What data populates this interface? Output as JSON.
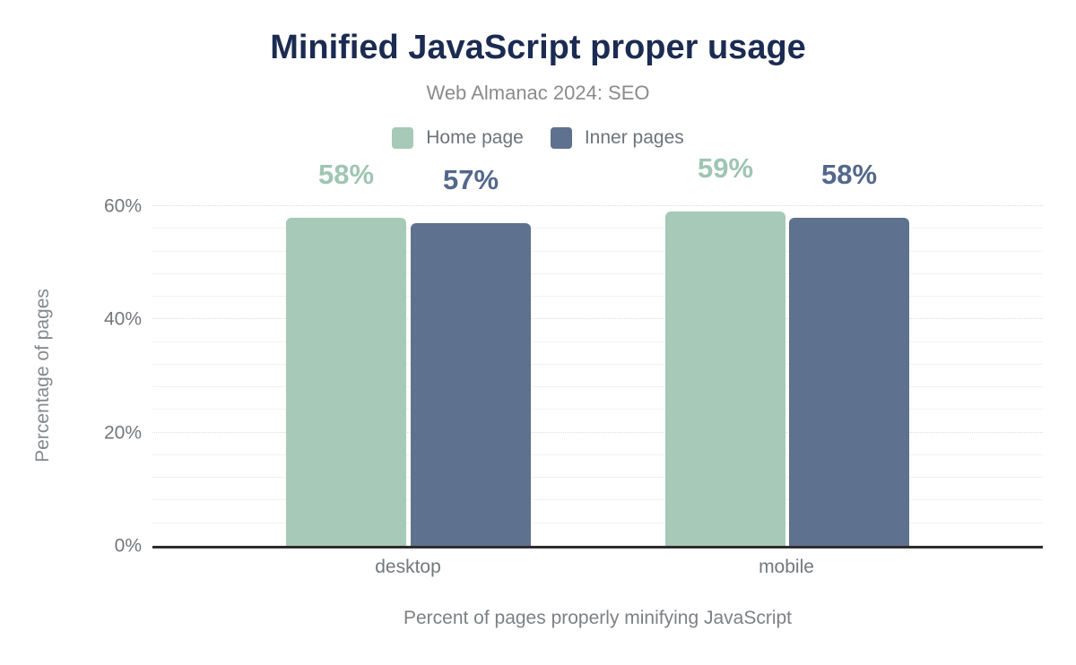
{
  "chart_data": {
    "type": "bar",
    "title": "Minified JavaScript proper usage",
    "subtitle": "Web Almanac 2024: SEO",
    "categories": [
      "desktop",
      "mobile"
    ],
    "series": [
      {
        "name": "Home page",
        "color": "#a6c9b8",
        "label_color": "#9fc5b3",
        "values": [
          58,
          59
        ],
        "value_labels": [
          "58%",
          "59%"
        ]
      },
      {
        "name": "Inner pages",
        "color": "#5e718e",
        "label_color": "#54688c",
        "values": [
          57,
          58
        ],
        "value_labels": [
          "57%",
          "58%"
        ]
      }
    ],
    "xlabel": "Percent of pages properly minifying JavaScript",
    "ylabel": "Percentage of pages",
    "ylim": [
      0,
      60
    ],
    "yticks": [
      {
        "value": 0,
        "label": "0%"
      },
      {
        "value": 20,
        "label": "20%"
      },
      {
        "value": 40,
        "label": "40%"
      },
      {
        "value": 60,
        "label": "60%"
      }
    ],
    "grid": {
      "minor_step": 4,
      "major_step": 20
    },
    "legend_position": "top"
  },
  "colors": {
    "title": "#1b2b52",
    "subtitle": "#8b8b8b",
    "axis_line": "#2d2d2d",
    "tick_text": "#74777c",
    "background": "#ffffff"
  }
}
